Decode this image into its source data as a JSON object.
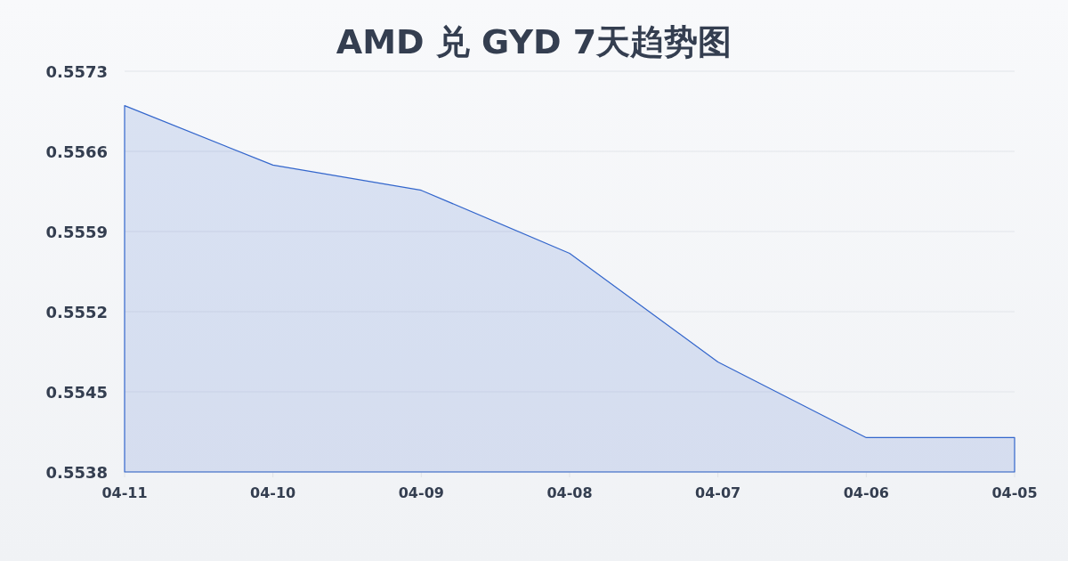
{
  "chart_data": {
    "type": "area",
    "title": "AMD 兑 GYD 7天趋势图",
    "categories": [
      "04-11",
      "04-10",
      "04-09",
      "04-08",
      "04-07",
      "04-06",
      "04-05"
    ],
    "values": [
      0.557,
      0.55648,
      0.55626,
      0.55571,
      0.55476,
      0.5541,
      0.5541
    ],
    "color": "#3366cc",
    "ylim": [
      0.5538,
      0.5573
    ],
    "yticks": [
      0.5538,
      0.5545,
      0.5552,
      0.5559,
      0.5566,
      0.5573
    ],
    "grid": "y"
  }
}
